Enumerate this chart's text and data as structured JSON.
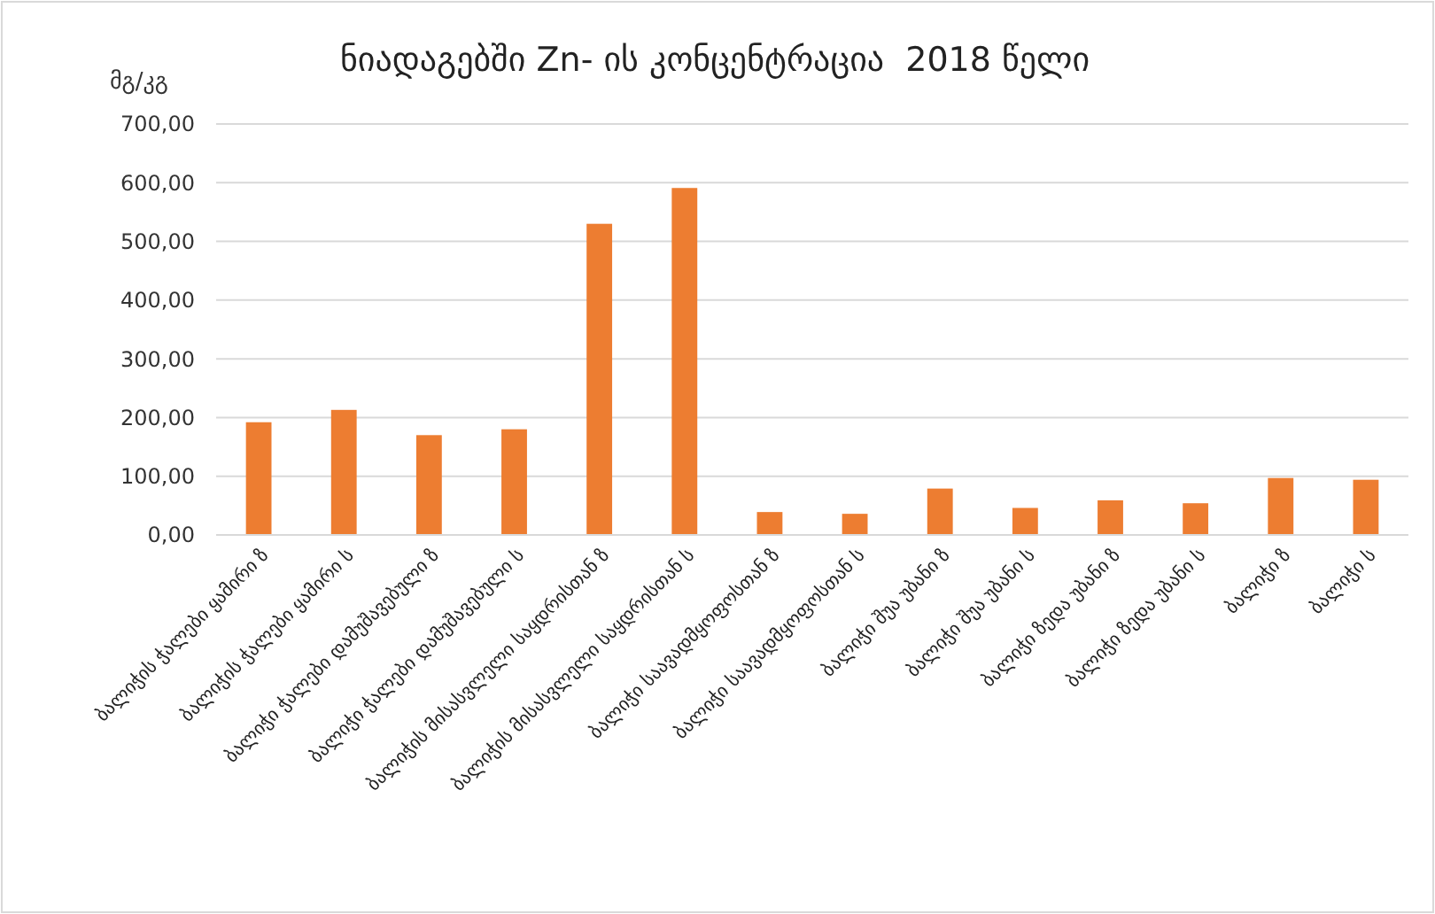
{
  "chart_data": {
    "type": "bar",
    "title": "ნიადაგებში Zn- ის კონცენტრაცია  2018 წელი",
    "ylabel": "მგ/კგ",
    "categories": [
      "ბალიჭის ჭალები ყამირი ზ",
      "ბალიჭის ჭალები ყამირი ს",
      "ბალიჭი ჭალები დამუშავებული ზ",
      "ბალიჭი ჭალები დამუშავებული ს",
      "ბალიჭის მისასვლელი საყდრისთან ზ",
      "ბალიჭის მისასვლელი საყდრისთან ს",
      "ბალიჭი საავადმყოფოსთან ზ",
      "ბალიჭი საავადმყოფოსთან ს",
      "ბალიჭი შუა უბანი ზ",
      "ბალიჭი შუა უბანი ს",
      "ბალიჭი ზედა უბანი ზ",
      "ბალიჭი ზედა უბანი ს",
      "ბალიჭი ზ",
      "ბალიჭი ს"
    ],
    "values": [
      192,
      213,
      170,
      180,
      530,
      591,
      39,
      36,
      79,
      46,
      59,
      54,
      97,
      94
    ],
    "color": "#ed7d31",
    "ylim": [
      0,
      700
    ],
    "yticks": [
      {
        "value": 0,
        "label": "0,00"
      },
      {
        "value": 100,
        "label": "100,00"
      },
      {
        "value": 200,
        "label": "200,00"
      },
      {
        "value": 300,
        "label": "300,00"
      },
      {
        "value": 400,
        "label": "400,00"
      },
      {
        "value": 500,
        "label": "500,00"
      },
      {
        "value": 600,
        "label": "600,00"
      },
      {
        "value": 700,
        "label": "700,00"
      }
    ],
    "grid": "y"
  }
}
